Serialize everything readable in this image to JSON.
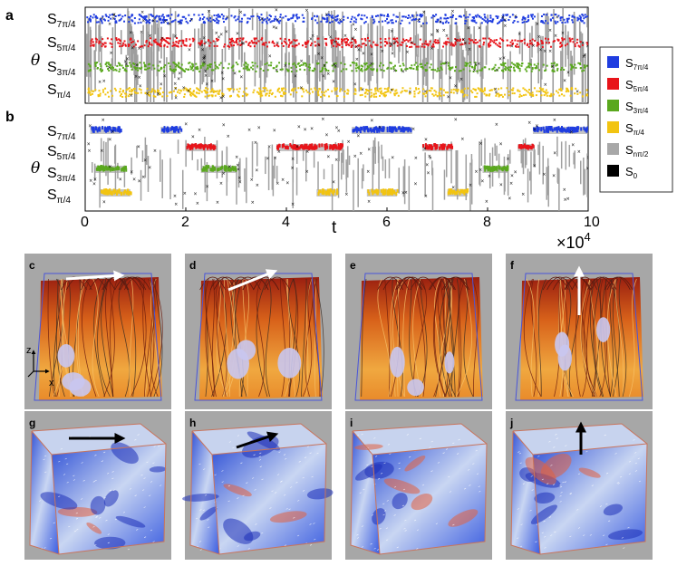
{
  "chart_data": [
    {
      "type": "scatter",
      "panel": "a",
      "ylabel": "θ",
      "ytick_labels": [
        {
          "base": "S",
          "sub": "7π/4"
        },
        {
          "base": "S",
          "sub": "5π/4"
        },
        {
          "base": "S",
          "sub": "3π/4"
        },
        {
          "base": "S",
          "sub": "π/4"
        }
      ],
      "xlim": [
        0,
        10
      ],
      "bands": [
        "7π/4",
        "5π/4",
        "3π/4",
        "π/4"
      ]
    },
    {
      "type": "scatter",
      "panel": "b",
      "ylabel": "θ",
      "xlabel": "t",
      "xticks": [
        "0",
        "2",
        "4",
        "6",
        "8",
        "10"
      ],
      "xlim": [
        0,
        10
      ],
      "x_multiplier": {
        "base": "×10",
        "exp": "4"
      },
      "ytick_labels": [
        {
          "base": "S",
          "sub": "7π/4"
        },
        {
          "base": "S",
          "sub": "5π/4"
        },
        {
          "base": "S",
          "sub": "3π/4"
        },
        {
          "base": "S",
          "sub": "π/4"
        }
      ],
      "segments": {
        "7π/4": [
          [
            0.1,
            0.7
          ],
          [
            1.5,
            1.9
          ],
          [
            5.3,
            6.5
          ],
          [
            8.9,
            10
          ]
        ],
        "5π/4": [
          [
            2.0,
            2.6
          ],
          [
            3.8,
            5.1
          ],
          [
            6.7,
            7.3
          ],
          [
            8.6,
            8.9
          ]
        ],
        "3π/4": [
          [
            0.2,
            0.8
          ],
          [
            2.3,
            3.0
          ],
          [
            7.9,
            8.4
          ]
        ],
        "π/4": [
          [
            0.3,
            0.9
          ],
          [
            4.6,
            5.0
          ],
          [
            5.6,
            6.2
          ],
          [
            7.2,
            7.6
          ]
        ]
      }
    }
  ],
  "legend": [
    {
      "base": "S",
      "sub": "7π/4",
      "color": "#1f3de0"
    },
    {
      "base": "S",
      "sub": "5π/4",
      "color": "#e8141a"
    },
    {
      "base": "S",
      "sub": "3π/4",
      "color": "#5aa81e"
    },
    {
      "base": "S",
      "sub": "π/4",
      "color": "#f2c411"
    },
    {
      "base": "S",
      "sub": "nπ/2",
      "color": "#a8a8a8"
    },
    {
      "base": "S",
      "sub": "0",
      "color": "#000000"
    }
  ],
  "panels": {
    "a": "a",
    "b": "b",
    "cubes_top": [
      "c",
      "d",
      "e",
      "f"
    ],
    "cubes_bottom": [
      "g",
      "h",
      "i",
      "j"
    ]
  },
  "axes_triad": {
    "z": "z",
    "x": "x"
  },
  "arrow_directions_top": [
    "east",
    "northeast",
    "none",
    "up"
  ],
  "arrow_directions_bottom": [
    "east",
    "northeast",
    "none",
    "up"
  ]
}
